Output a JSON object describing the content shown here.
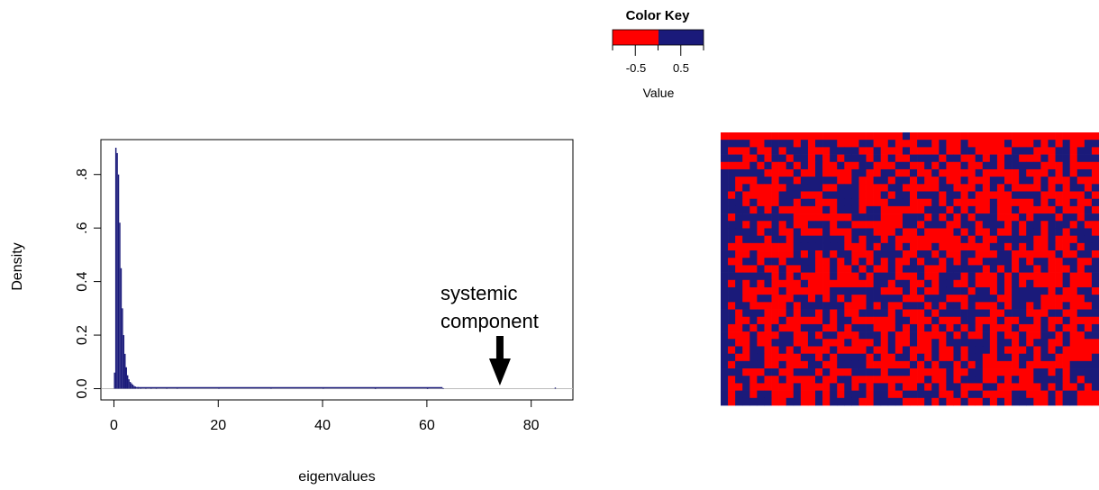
{
  "colors": {
    "negative": "#ff0000",
    "positive": "#1a1a7a",
    "axis": "#000000",
    "baseline": "#bbbbbb"
  },
  "color_key": {
    "title": "Color Key",
    "tick_labels": [
      "-0.5",
      "0.5"
    ],
    "tick_values": [
      -0.5,
      0.5
    ],
    "range": [
      -1,
      1
    ],
    "axis_label": "Value"
  },
  "annotation": {
    "line1": "systemic",
    "line2": "component",
    "x": 74
  },
  "chart_data": [
    {
      "type": "bar",
      "title": "",
      "xlabel": "eigenvalues",
      "ylabel": "Density",
      "xlim": [
        -2.5,
        88
      ],
      "ylim": [
        0,
        0.9
      ],
      "x_ticks": [
        0,
        20,
        40,
        60,
        80
      ],
      "x_tick_labels": [
        "0",
        "20",
        "40",
        "60",
        "80"
      ],
      "y_ticks": [
        0.0,
        0.2,
        0.4,
        0.6,
        0.8
      ],
      "y_tick_labels": [
        "0.0",
        "0.2",
        "0.4",
        ".6",
        ".8"
      ],
      "bin_width": 0.25,
      "series": [
        {
          "x": [
            0.0,
            0.25,
            0.5,
            0.75,
            1.0,
            1.25,
            1.5,
            1.75,
            2.0,
            2.25,
            2.5,
            2.75,
            3.0,
            3.25,
            3.5,
            3.75,
            4.0,
            4.5,
            5.0,
            6.0,
            7.0,
            8.0,
            10.0,
            12.0,
            20.0,
            30.0,
            40.0,
            50.0,
            60.0,
            63.0,
            84.5
          ],
          "values": [
            0.06,
            0.9,
            0.88,
            0.8,
            0.62,
            0.45,
            0.3,
            0.2,
            0.13,
            0.08,
            0.05,
            0.035,
            0.025,
            0.02,
            0.015,
            0.01,
            0.008,
            0.006,
            0.005,
            0.004,
            0.003,
            0.003,
            0.003,
            0.003,
            0.003,
            0.003,
            0.003,
            0.002,
            0.002,
            0.002,
            0.004
          ]
        }
      ]
    },
    {
      "type": "heatmap",
      "title": "",
      "rows": 37,
      "cols": 52,
      "value_labels": [
        "-0.5",
        "0.5"
      ],
      "values": [
        "1111111111111111111111111011111111111111111111111111",
        "0000110000101000111001101110010110111110111010101100",
        "0111011010001110000110111011110110011111000111001001",
        "0001101001001010100010101100001001101010011101001000",
        "1111010110101011011001110011010110110010000011101111",
        "0000001111011011110011001101101111101111101110101001",
        "0011100100100000110110010010110110111001100101110111",
        "0010111110000011000111100111110011101010111101010010",
        "0101111100011100000111010010001001011111000011111101",
        "0001011100100111000111100011101011111011111010110110",
        "0000101011111101000100111111000101011011011111011101",
        "0100000000111111110000111000101010100011101000100100",
        "0001011010110001001111111001000110010001010010001011",
        "0000010011011101110001110110111101011011010010010001",
        "0010001001000000010100101111111110101100000110111000",
        "0111111111000000011101001011101111111001010110110100",
        "0011011111010101001110000110010110011100111111011001",
        "0110010010000110101010101101001010110000101001100110",
        "0011101101100110110101101000111000001010100101110100",
        "0000000101011110111010001110110001011101011111101110",
        "0101010111101111111110010011010011011101010111101110",
        "0001111101111110000000111010110000100101000001011001",
        "0001100111001010101100000111000111000011000011111100",
        "0100111110100000011101011000101001011101001011101110",
        "0010001110100101011000010111010000000110001110011000",
        "0011011101111101001111110011101110011101100101101111",
        "0110101011100011010001110101010101010111011101011010",
        "0111011100110100111000101101111010110101101100101100",
        "0011011000110011101110101101101000000100101001101111",
        "0101001101011110111101101011101101000101110101011111",
        "0011001111100101000010110010101101001100100100111110",
        "0100001101110011000011111101010010101111101111110000",
        "0001110011000101110000100011111011001111111001010000",
        "0100101101111011001111111111011010001101011000010100",
        "0110111111011110101010010110101001110011111101011010",
        "0100100111011010100010011000001101001111001110100111",
        "0100000110011010000110000111010110110101000110100111"
      ]
    }
  ]
}
